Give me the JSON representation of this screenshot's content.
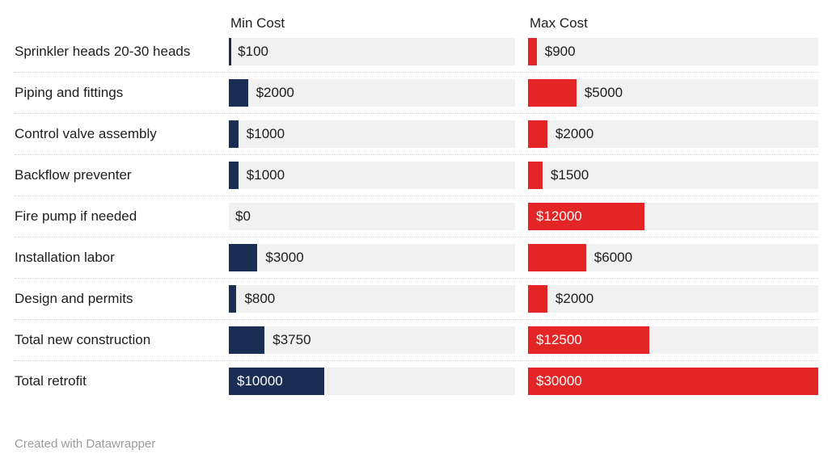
{
  "colors": {
    "navy": "#1a2d52",
    "red": "#e32526",
    "track": "#f1f1f1",
    "text": "#1d1d1d",
    "muted": "#9b9b9b",
    "separator": "#d4d4d4"
  },
  "header": {
    "min_cost_label": "Min Cost",
    "max_cost_label": "Max Cost"
  },
  "footer": {
    "attribution": "Created with Datawrapper"
  },
  "chart_data": {
    "type": "bar",
    "title": "",
    "categories": [
      "Sprinkler heads 20-30 heads",
      "Piping and fittings",
      "Control valve assembly",
      "Backflow preventer",
      "Fire pump if needed",
      "Installation labor",
      "Design and permits",
      "Total new construction",
      "Total retrofit"
    ],
    "series": [
      {
        "name": "Min Cost",
        "color": "#1a2d52",
        "values": [
          100,
          2000,
          1000,
          1000,
          0,
          3000,
          800,
          3750,
          10000
        ]
      },
      {
        "name": "Max Cost",
        "color": "#e32526",
        "values": [
          900,
          5000,
          2000,
          1500,
          12000,
          6000,
          2000,
          12500,
          30000
        ]
      }
    ],
    "value_labels": {
      "min": [
        "$100",
        "$2000",
        "$1000",
        "$1000",
        "$0",
        "$3000",
        "$800",
        "$3750",
        "$10000"
      ],
      "max": [
        "$900",
        "$5000",
        "$2000",
        "$1500",
        "$12000",
        "$6000",
        "$2000",
        "$12500",
        "$30000"
      ]
    },
    "label_inside": {
      "min": [
        false,
        false,
        false,
        false,
        false,
        false,
        false,
        false,
        true
      ],
      "max": [
        false,
        false,
        false,
        false,
        true,
        false,
        false,
        true,
        true
      ]
    },
    "xlim": [
      0,
      30000
    ],
    "grid": false,
    "legend_position": "column-headers",
    "layout": "split-bars-two-columns"
  }
}
